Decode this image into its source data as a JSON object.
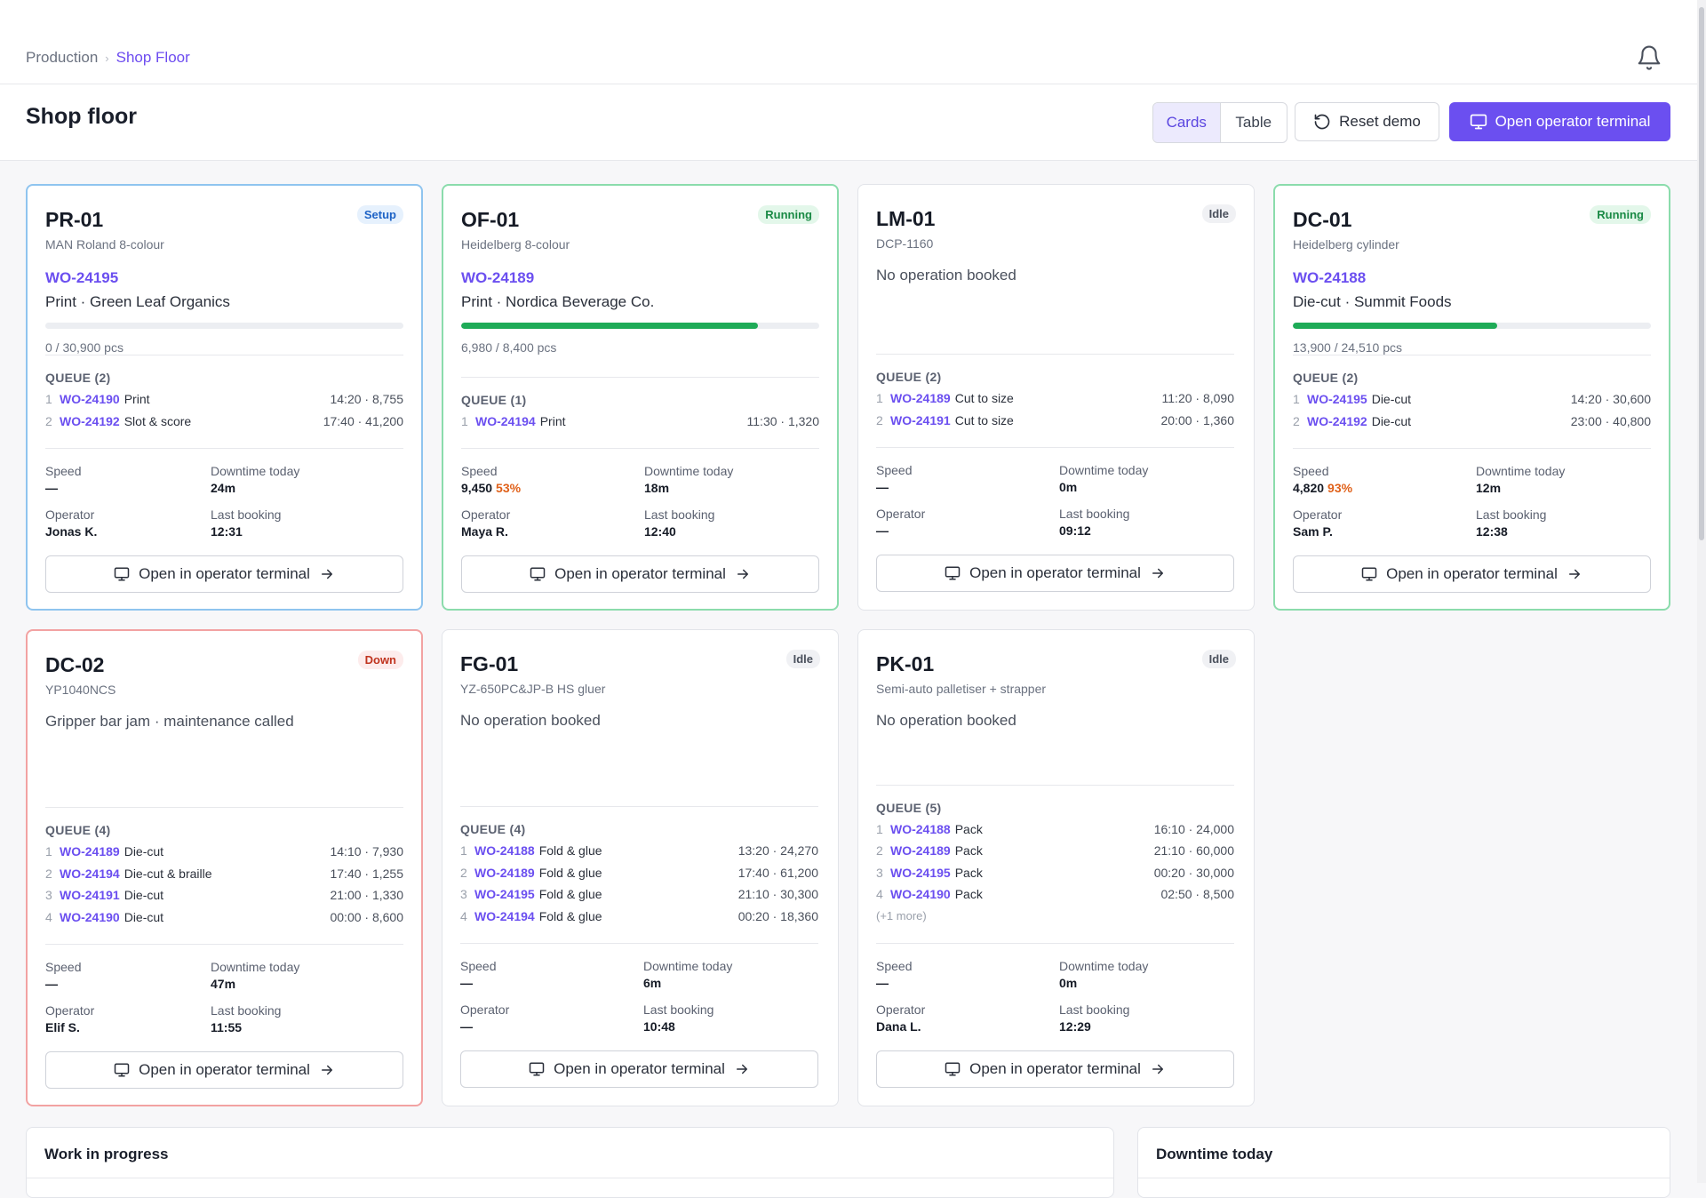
{
  "breadcrumb": {
    "parent": "Production",
    "current": "Shop Floor"
  },
  "page": {
    "title": "Shop floor"
  },
  "view_toggle": {
    "cards": "Cards",
    "table": "Table",
    "selected": "Cards"
  },
  "actions": {
    "reset": "Reset demo",
    "open_terminal": "Open operator terminal"
  },
  "labels": {
    "speed": "Speed",
    "downtime": "Downtime today",
    "operator": "Operator",
    "last_booking": "Last booking",
    "card_button": "Open in operator terminal"
  },
  "machines": [
    {
      "id": "PR-01",
      "model": "MAN Roland 8-colour",
      "status": "Setup",
      "wo": "WO-24195",
      "operation": "Print · Green Leaf Organics",
      "progress": 0.0,
      "pcs": "0 / 30,900 pcs",
      "queue_label": "QUEUE (2)",
      "queue": [
        {
          "n": "1",
          "wo": "WO-24190",
          "op": "Print",
          "info": "14:20 · 8,755"
        },
        {
          "n": "2",
          "wo": "WO-24192",
          "op": "Slot & score",
          "info": "17:40 · 41,200"
        }
      ],
      "speed": "—",
      "speed_pct": "",
      "downtime": "24m",
      "operator": "Jonas K.",
      "last_booking": "12:31"
    },
    {
      "id": "OF-01",
      "model": "Heidelberg 8-colour",
      "status": "Running",
      "wo": "WO-24189",
      "operation": "Print · Nordica Beverage Co.",
      "progress": 0.83,
      "pcs": "6,980 / 8,400 pcs",
      "queue_label": "QUEUE (1)",
      "queue": [
        {
          "n": "1",
          "wo": "WO-24194",
          "op": "Print",
          "info": "11:30 · 1,320"
        }
      ],
      "speed": "9,450",
      "speed_pct": "53%",
      "downtime": "18m",
      "operator": "Maya R.",
      "last_booking": "12:40"
    },
    {
      "id": "LM-01",
      "model": "DCP-1160",
      "status": "Idle",
      "message": "No operation booked",
      "queue_label": "QUEUE (2)",
      "queue": [
        {
          "n": "1",
          "wo": "WO-24189",
          "op": "Cut to size",
          "info": "11:20 · 8,090"
        },
        {
          "n": "2",
          "wo": "WO-24191",
          "op": "Cut to size",
          "info": "20:00 · 1,360"
        }
      ],
      "speed": "—",
      "speed_pct": "",
      "downtime": "0m",
      "operator": "—",
      "last_booking": "09:12"
    },
    {
      "id": "DC-01",
      "model": "Heidelberg cylinder",
      "status": "Running",
      "wo": "WO-24188",
      "operation": "Die-cut · Summit Foods",
      "progress": 0.57,
      "pcs": "13,900 / 24,510 pcs",
      "queue_label": "QUEUE (2)",
      "queue": [
        {
          "n": "1",
          "wo": "WO-24195",
          "op": "Die-cut",
          "info": "14:20 · 30,600"
        },
        {
          "n": "2",
          "wo": "WO-24192",
          "op": "Die-cut",
          "info": "23:00 · 40,800"
        }
      ],
      "speed": "4,820",
      "speed_pct": "93%",
      "downtime": "12m",
      "operator": "Sam P.",
      "last_booking": "12:38"
    },
    {
      "id": "DC-02",
      "model": "YP1040NCS",
      "status": "Down",
      "message": "Gripper bar jam · maintenance called",
      "queue_label": "QUEUE (4)",
      "queue": [
        {
          "n": "1",
          "wo": "WO-24189",
          "op": "Die-cut",
          "info": "14:10 · 7,930"
        },
        {
          "n": "2",
          "wo": "WO-24194",
          "op": "Die-cut & braille",
          "info": "17:40 · 1,255"
        },
        {
          "n": "3",
          "wo": "WO-24191",
          "op": "Die-cut",
          "info": "21:00 · 1,330"
        },
        {
          "n": "4",
          "wo": "WO-24190",
          "op": "Die-cut",
          "info": "00:00 · 8,600"
        }
      ],
      "speed": "—",
      "speed_pct": "",
      "downtime": "47m",
      "operator": "Elif S.",
      "last_booking": "11:55"
    },
    {
      "id": "FG-01",
      "model": "YZ-650PC&JP-B HS gluer",
      "status": "Idle",
      "message": "No operation booked",
      "queue_label": "QUEUE (4)",
      "queue": [
        {
          "n": "1",
          "wo": "WO-24188",
          "op": "Fold & glue",
          "info": "13:20 · 24,270"
        },
        {
          "n": "2",
          "wo": "WO-24189",
          "op": "Fold & glue",
          "info": "17:40 · 61,200"
        },
        {
          "n": "3",
          "wo": "WO-24195",
          "op": "Fold & glue",
          "info": "21:10 · 30,300"
        },
        {
          "n": "4",
          "wo": "WO-24194",
          "op": "Fold & glue",
          "info": "00:20 · 18,360"
        }
      ],
      "speed": "—",
      "speed_pct": "",
      "downtime": "6m",
      "operator": "—",
      "last_booking": "10:48"
    },
    {
      "id": "PK-01",
      "model": "Semi-auto palletiser + strapper",
      "status": "Idle",
      "message": "No operation booked",
      "queue_label": "QUEUE (5)",
      "queue": [
        {
          "n": "1",
          "wo": "WO-24188",
          "op": "Pack",
          "info": "16:10 · 24,000"
        },
        {
          "n": "2",
          "wo": "WO-24189",
          "op": "Pack",
          "info": "21:10 · 60,000"
        },
        {
          "n": "3",
          "wo": "WO-24195",
          "op": "Pack",
          "info": "00:20 · 30,000"
        },
        {
          "n": "4",
          "wo": "WO-24190",
          "op": "Pack",
          "info": "02:50 · 8,500"
        }
      ],
      "queue_more": "(+1 more)",
      "speed": "—",
      "speed_pct": "",
      "downtime": "0m",
      "operator": "Dana L.",
      "last_booking": "12:29"
    }
  ],
  "panels": {
    "wip": "Work in progress",
    "downtime": "Downtime today"
  },
  "colors": {
    "accent": "#6b4ff0",
    "running": "#1eab57",
    "setup": "#8fc4ef",
    "down": "#f2a2a2"
  }
}
